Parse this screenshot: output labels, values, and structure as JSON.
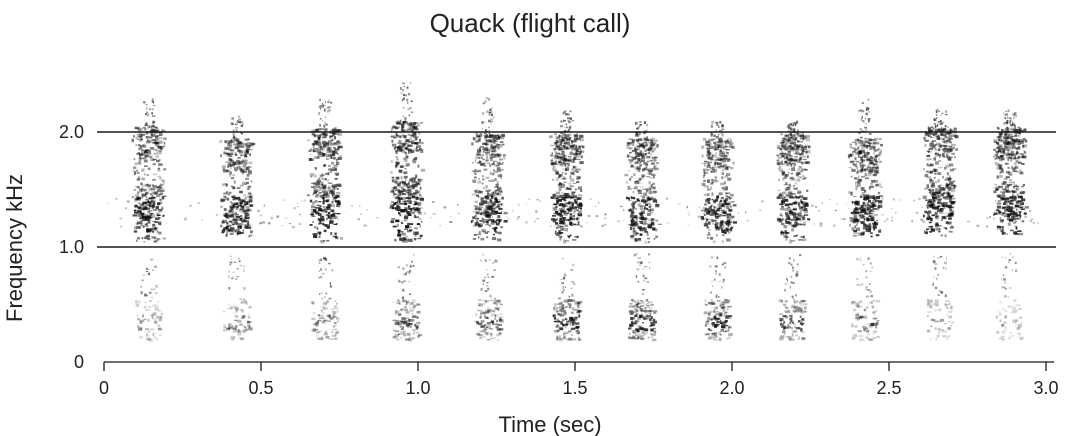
{
  "chart_data": {
    "type": "spectrogram",
    "title": "Quack (flight call)",
    "xlabel": "Time (sec)",
    "ylabel": "Frequency kHz",
    "xlim": [
      0,
      3.0
    ],
    "ylim": [
      0,
      2.5
    ],
    "x_ticks": [
      {
        "value": 0,
        "label": "0"
      },
      {
        "value": 0.5,
        "label": "0.5"
      },
      {
        "value": 1.0,
        "label": "1.0"
      },
      {
        "value": 1.5,
        "label": "1.5"
      },
      {
        "value": 2.0,
        "label": "2.0"
      },
      {
        "value": 2.5,
        "label": "2.5"
      },
      {
        "value": 3.0,
        "label": "3.0"
      }
    ],
    "y_ticks": [
      {
        "value": 0,
        "label": "0"
      },
      {
        "value": 1.0,
        "label": "1.0"
      },
      {
        "value": 2.0,
        "label": "2.0"
      }
    ],
    "reference_lines_khz": [
      1.0,
      2.0
    ],
    "calls": [
      {
        "time": 0.14,
        "main_low": 1.05,
        "main_high": 2.05,
        "upper": 2.3,
        "strong": 0.9,
        "low_strength": 0.35
      },
      {
        "time": 0.42,
        "main_low": 1.1,
        "main_high": 1.95,
        "upper": 2.15,
        "strong": 0.85,
        "low_strength": 0.4
      },
      {
        "time": 0.7,
        "main_low": 1.05,
        "main_high": 2.05,
        "upper": 2.3,
        "strong": 0.95,
        "low_strength": 0.45
      },
      {
        "time": 0.96,
        "main_low": 1.05,
        "main_high": 2.1,
        "upper": 2.45,
        "strong": 1.0,
        "low_strength": 0.6
      },
      {
        "time": 1.22,
        "main_low": 1.05,
        "main_high": 2.0,
        "upper": 2.3,
        "strong": 0.9,
        "low_strength": 0.6
      },
      {
        "time": 1.47,
        "main_low": 1.05,
        "main_high": 2.0,
        "upper": 2.2,
        "strong": 0.95,
        "low_strength": 0.8
      },
      {
        "time": 1.71,
        "main_low": 1.05,
        "main_high": 1.95,
        "upper": 2.1,
        "strong": 0.85,
        "low_strength": 0.75
      },
      {
        "time": 1.95,
        "main_low": 1.05,
        "main_high": 1.95,
        "upper": 2.1,
        "strong": 0.85,
        "low_strength": 0.75
      },
      {
        "time": 2.19,
        "main_low": 1.05,
        "main_high": 2.0,
        "upper": 2.1,
        "strong": 0.9,
        "low_strength": 0.6
      },
      {
        "time": 2.42,
        "main_low": 1.1,
        "main_high": 1.95,
        "upper": 2.3,
        "strong": 0.9,
        "low_strength": 0.45
      },
      {
        "time": 2.66,
        "main_low": 1.1,
        "main_high": 2.05,
        "upper": 2.2,
        "strong": 0.95,
        "low_strength": 0.35
      },
      {
        "time": 2.88,
        "main_low": 1.1,
        "main_high": 2.05,
        "upper": 2.2,
        "strong": 0.95,
        "low_strength": 0.3
      }
    ],
    "grid": false,
    "legend": "none"
  }
}
